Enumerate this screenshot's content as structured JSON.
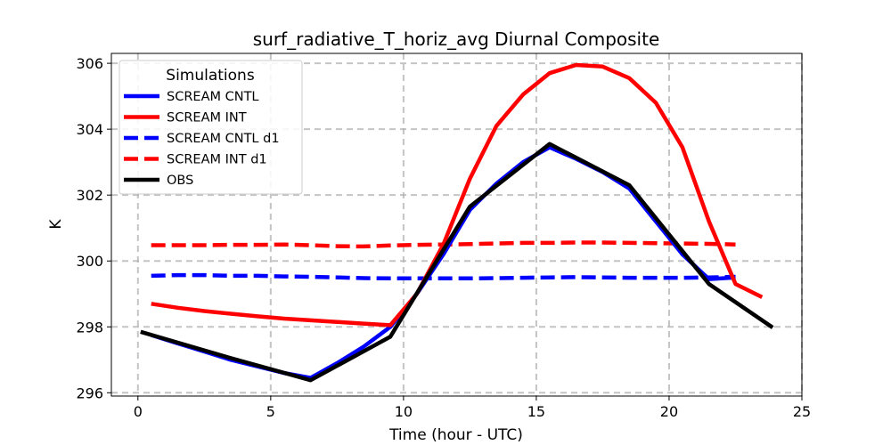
{
  "chart_data": {
    "type": "line",
    "title": "surf_radiative_T_horiz_avg Diurnal Composite",
    "xlabel": "Time (hour - UTC)",
    "ylabel": "K",
    "xlim": [
      -1.0,
      25.0
    ],
    "ylim": [
      295.9,
      306.3
    ],
    "xticks": [
      0,
      5,
      10,
      15,
      20,
      25
    ],
    "yticks": [
      296,
      298,
      300,
      302,
      304,
      306
    ],
    "grid": true,
    "legend": {
      "title": "Simulations",
      "location": "upper-left"
    },
    "series": [
      {
        "name": "SCREAM CNTL",
        "color": "#0000ff",
        "style": "solid",
        "x": [
          0.5,
          1.5,
          2.5,
          3.5,
          4.5,
          5.5,
          6.5,
          7.5,
          8.5,
          9.5,
          10.5,
          11.5,
          12.5,
          13.5,
          14.5,
          15.5,
          16.5,
          17.5,
          18.5,
          19.5,
          20.5,
          21.5,
          22.5
        ],
        "y": [
          297.75,
          297.5,
          297.25,
          297.0,
          296.8,
          296.6,
          296.45,
          296.9,
          297.4,
          298.0,
          299.0,
          300.2,
          301.55,
          302.35,
          303.0,
          303.45,
          303.1,
          302.7,
          302.2,
          301.2,
          300.2,
          299.45,
          299.5
        ]
      },
      {
        "name": "SCREAM INT",
        "color": "#ff0000",
        "style": "solid",
        "x": [
          0.5,
          1.5,
          2.5,
          3.5,
          4.5,
          5.5,
          6.5,
          7.5,
          8.5,
          9.5,
          10.5,
          11.5,
          12.5,
          13.5,
          14.5,
          15.5,
          16.5,
          17.5,
          18.5,
          19.5,
          20.5,
          21.5,
          22.5,
          23.5
        ],
        "y": [
          298.7,
          298.58,
          298.48,
          298.4,
          298.32,
          298.25,
          298.2,
          298.15,
          298.1,
          298.05,
          299.0,
          300.5,
          302.5,
          304.1,
          305.05,
          305.7,
          305.95,
          305.9,
          305.55,
          304.8,
          303.45,
          301.2,
          299.3,
          298.9
        ]
      },
      {
        "name": "SCREAM CNTL d1",
        "color": "#0000ff",
        "style": "dashed",
        "x": [
          0.5,
          1.5,
          2.5,
          3.5,
          4.5,
          5.5,
          6.5,
          7.5,
          8.5,
          9.5,
          10.5,
          11.5,
          12.5,
          13.5,
          14.5,
          15.5,
          16.5,
          17.5,
          18.5,
          19.5,
          20.5,
          21.5,
          22.5
        ],
        "y": [
          299.55,
          299.57,
          299.57,
          299.55,
          299.55,
          299.53,
          299.52,
          299.5,
          299.48,
          299.47,
          299.47,
          299.47,
          299.47,
          299.48,
          299.49,
          299.5,
          299.51,
          299.5,
          299.49,
          299.49,
          299.49,
          299.5,
          299.52
        ]
      },
      {
        "name": "SCREAM INT d1",
        "color": "#ff0000",
        "style": "dashed",
        "x": [
          0.5,
          1.5,
          2.5,
          3.5,
          4.5,
          5.5,
          6.5,
          7.5,
          8.5,
          9.5,
          10.5,
          11.5,
          12.5,
          13.5,
          14.5,
          15.5,
          16.5,
          17.5,
          18.5,
          19.5,
          20.5,
          21.5,
          22.5
        ],
        "y": [
          300.48,
          300.48,
          300.48,
          300.49,
          300.49,
          300.5,
          300.48,
          300.45,
          300.44,
          300.47,
          300.49,
          300.5,
          300.51,
          300.53,
          300.55,
          300.55,
          300.56,
          300.56,
          300.55,
          300.54,
          300.53,
          300.52,
          300.5
        ]
      },
      {
        "name": "OBS",
        "color": "#000000",
        "style": "solid",
        "x": [
          0.1,
          3.5,
          6.5,
          9.5,
          12.5,
          15.5,
          18.5,
          21.5,
          23.9
        ],
        "y": [
          297.85,
          297.05,
          296.38,
          297.7,
          301.65,
          303.55,
          302.3,
          299.3,
          297.98
        ]
      }
    ]
  }
}
